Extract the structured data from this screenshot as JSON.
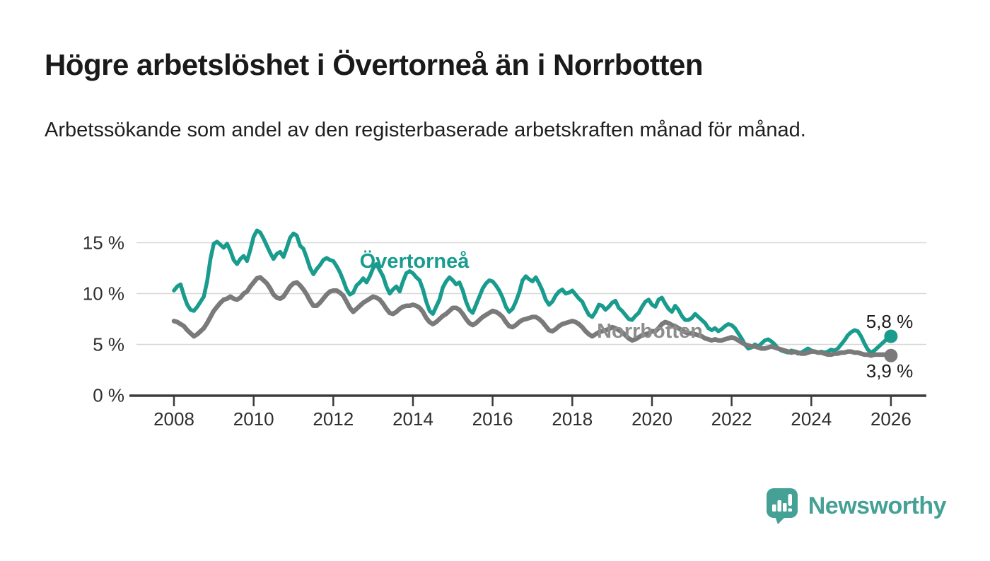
{
  "header": {
    "title": "Högre arbetslöshet i Övertorneå än i Norrbotten",
    "subtitle": "Arbetssökande som andel av den registerbaserade arbetskraften månad för månad."
  },
  "chart_data": {
    "type": "line",
    "unit": "%",
    "x_start_year": 2008,
    "x_end_year": 2026,
    "points_per_year": 12,
    "ylim": [
      0,
      17
    ],
    "grid": "horizontal-only",
    "x_ticks": [
      2008,
      2010,
      2012,
      2014,
      2016,
      2018,
      2020,
      2022,
      2024,
      2026
    ],
    "y_ticks": [
      {
        "value": 0,
        "label": "0 %"
      },
      {
        "value": 5,
        "label": "5 %"
      },
      {
        "value": 10,
        "label": "10 %"
      },
      {
        "value": 15,
        "label": "15 %"
      }
    ],
    "grid_values": [
      5,
      10,
      15
    ],
    "series": [
      {
        "name": "Övertorneå",
        "color": "#199b8e",
        "label_color": "#199b8e",
        "end_label": "5,8 %",
        "end_value": 5.8,
        "values": [
          10.3,
          10.7,
          10.9,
          9.8,
          8.9,
          8.4,
          8.3,
          8.7,
          9.2,
          9.7,
          11.2,
          13.4,
          14.9,
          15.1,
          14.8,
          14.5,
          14.9,
          14.2,
          13.3,
          12.9,
          13.4,
          13.7,
          13.2,
          14.3,
          15.6,
          16.2,
          16.0,
          15.4,
          14.7,
          14.0,
          13.4,
          13.9,
          14.1,
          13.6,
          14.5,
          15.5,
          15.9,
          15.7,
          14.7,
          14.4,
          13.5,
          12.5,
          11.9,
          12.4,
          12.8,
          13.3,
          13.5,
          13.3,
          13.2,
          12.7,
          12.1,
          11.3,
          10.4,
          9.9,
          10.1,
          10.8,
          11.1,
          11.5,
          11.1,
          11.7,
          12.5,
          12.9,
          12.3,
          11.7,
          10.7,
          10.0,
          10.4,
          10.7,
          10.2,
          11.2,
          12.0,
          12.2,
          12.0,
          11.6,
          11.3,
          10.4,
          9.2,
          8.3,
          8.0,
          8.7,
          9.4,
          10.6,
          11.2,
          11.6,
          11.3,
          10.9,
          11.1,
          10.3,
          9.2,
          8.4,
          8.1,
          8.9,
          9.7,
          10.5,
          11.0,
          11.3,
          11.2,
          10.8,
          10.3,
          9.6,
          8.7,
          8.2,
          8.5,
          9.2,
          10.1,
          11.3,
          11.7,
          11.4,
          11.2,
          11.6,
          11.0,
          10.3,
          9.4,
          8.9,
          9.2,
          9.8,
          10.2,
          10.4,
          10.0,
          10.1,
          10.3,
          9.9,
          9.5,
          9.2,
          8.5,
          7.9,
          7.7,
          8.2,
          8.9,
          8.8,
          8.4,
          8.7,
          9.1,
          9.3,
          8.6,
          8.3,
          7.9,
          7.5,
          7.4,
          7.8,
          8.1,
          8.7,
          9.2,
          9.4,
          8.9,
          8.7,
          9.4,
          9.6,
          9.0,
          8.5,
          8.2,
          8.8,
          8.4,
          7.8,
          7.4,
          7.4,
          7.6,
          8.0,
          7.7,
          7.4,
          7.1,
          6.6,
          6.4,
          6.6,
          6.3,
          6.5,
          6.8,
          7.0,
          6.9,
          6.6,
          6.1,
          5.6,
          5.0,
          4.6,
          4.7,
          5.0,
          4.8,
          5.1,
          5.4,
          5.5,
          5.3,
          5.0,
          4.6,
          4.4,
          4.3,
          4.2,
          4.4,
          4.3,
          4.1,
          4.2,
          4.4,
          4.6,
          4.4,
          4.3,
          4.2,
          4.3,
          4.2,
          4.3,
          4.5,
          4.4,
          4.6,
          5.0,
          5.4,
          5.9,
          6.2,
          6.4,
          6.3,
          5.8,
          5.1,
          4.5,
          4.2,
          4.4,
          4.7,
          5.0,
          5.3,
          5.6,
          5.8
        ]
      },
      {
        "name": "Norrbotten",
        "color": "#7a7a7a",
        "label_color": "#8d8d8d",
        "end_label": "3,9 %",
        "end_value": 3.9,
        "values": [
          7.3,
          7.2,
          7.0,
          6.8,
          6.4,
          6.1,
          5.8,
          6.0,
          6.3,
          6.6,
          7.1,
          7.7,
          8.3,
          8.7,
          9.1,
          9.4,
          9.5,
          9.7,
          9.5,
          9.4,
          9.6,
          10.0,
          10.2,
          10.7,
          11.1,
          11.5,
          11.6,
          11.3,
          11.0,
          10.5,
          9.9,
          9.6,
          9.5,
          9.7,
          10.2,
          10.7,
          11.0,
          11.1,
          10.8,
          10.4,
          9.9,
          9.3,
          8.8,
          8.8,
          9.1,
          9.5,
          9.9,
          10.2,
          10.3,
          10.3,
          10.1,
          9.8,
          9.2,
          8.6,
          8.2,
          8.5,
          8.8,
          9.1,
          9.3,
          9.5,
          9.7,
          9.6,
          9.4,
          9.0,
          8.5,
          8.1,
          8.0,
          8.2,
          8.5,
          8.7,
          8.8,
          8.8,
          8.9,
          8.8,
          8.6,
          8.2,
          7.6,
          7.2,
          7.0,
          7.2,
          7.5,
          7.8,
          8.0,
          8.3,
          8.6,
          8.6,
          8.4,
          8.0,
          7.5,
          7.1,
          6.9,
          7.1,
          7.4,
          7.7,
          7.9,
          8.1,
          8.3,
          8.2,
          8.0,
          7.7,
          7.2,
          6.8,
          6.7,
          6.9,
          7.2,
          7.4,
          7.5,
          7.6,
          7.7,
          7.7,
          7.5,
          7.2,
          6.8,
          6.4,
          6.3,
          6.5,
          6.8,
          7.0,
          7.1,
          7.2,
          7.3,
          7.2,
          7.0,
          6.7,
          6.3,
          6.0,
          5.8,
          6.0,
          6.2,
          6.3,
          6.4,
          6.5,
          6.7,
          6.6,
          6.4,
          6.2,
          5.9,
          5.6,
          5.4,
          5.5,
          5.7,
          5.9,
          6.0,
          6.1,
          6.3,
          6.3,
          6.6,
          7.0,
          7.2,
          7.1,
          6.9,
          6.8,
          6.6,
          6.4,
          6.2,
          6.1,
          6.1,
          6.0,
          5.9,
          5.8,
          5.6,
          5.5,
          5.4,
          5.5,
          5.4,
          5.4,
          5.5,
          5.6,
          5.7,
          5.6,
          5.4,
          5.2,
          5.0,
          4.9,
          4.8,
          4.8,
          4.7,
          4.6,
          4.6,
          4.7,
          4.8,
          4.7,
          4.6,
          4.5,
          4.4,
          4.3,
          4.2,
          4.3,
          4.2,
          4.1,
          4.1,
          4.2,
          4.3,
          4.3,
          4.2,
          4.2,
          4.1,
          4.0,
          4.0,
          4.1,
          4.1,
          4.2,
          4.2,
          4.3,
          4.3,
          4.2,
          4.2,
          4.1,
          4.0,
          4.0,
          3.9,
          4.0,
          4.0,
          4.0,
          4.0,
          4.0,
          3.9
        ]
      }
    ]
  },
  "branding": {
    "name": "Newsworthy",
    "icon": "newsworthy-speech-bubble-chart-icon",
    "color": "#45a095"
  }
}
